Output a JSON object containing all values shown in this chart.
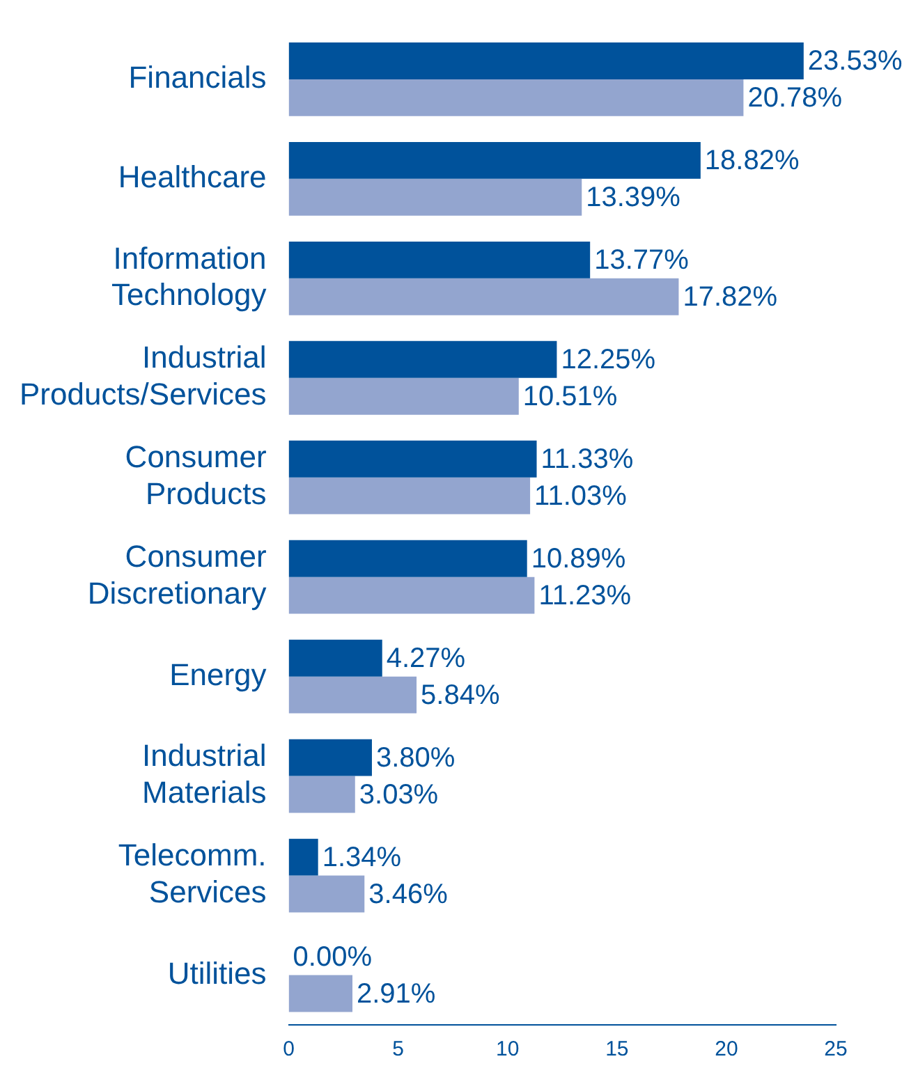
{
  "chart_data": {
    "type": "bar",
    "orientation": "horizontal",
    "categories": [
      "Financials",
      "Healthcare",
      "Information Technology",
      "Industrial Products/Services",
      "Consumer Products",
      "Consumer Discretionary",
      "Energy",
      "Industrial Materials",
      "Telecomm. Services",
      "Utilities"
    ],
    "series": [
      {
        "color": "#00529b",
        "values": [
          23.53,
          18.82,
          13.77,
          12.25,
          11.33,
          10.89,
          4.27,
          3.8,
          1.34,
          0.0
        ],
        "value_labels": [
          "23.53%",
          "18.82%",
          "13.77%",
          "12.25%",
          "11.33%",
          "10.89%",
          "4.27%",
          "3.80%",
          "1.34%",
          "0.00%"
        ]
      },
      {
        "color": "#93a5cf",
        "values": [
          20.78,
          13.39,
          17.82,
          10.51,
          11.03,
          11.23,
          5.84,
          3.03,
          3.46,
          2.91
        ],
        "value_labels": [
          "20.78%",
          "13.39%",
          "17.82%",
          "10.51%",
          "11.03%",
          "11.23%",
          "5.84%",
          "3.03%",
          "3.46%",
          "2.91%"
        ]
      }
    ],
    "xlim": [
      0,
      25
    ],
    "xticks": [
      0,
      5,
      10,
      15,
      20,
      25
    ],
    "legend": false
  }
}
